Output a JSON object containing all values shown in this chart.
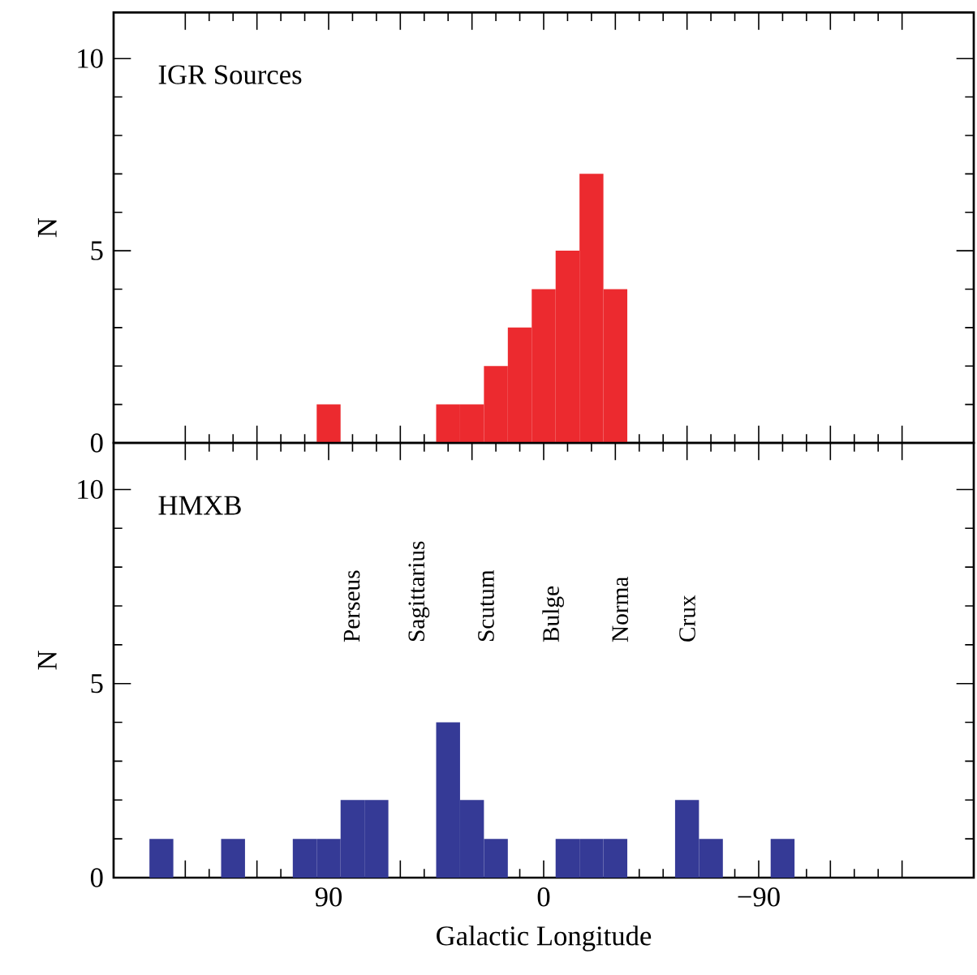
{
  "chart_data": [
    {
      "type": "histogram",
      "title": "IGR Sources",
      "ylabel": "N",
      "color": "#ec2a2f",
      "bins": [
        175,
        165,
        155,
        145,
        135,
        125,
        115,
        105,
        95,
        85,
        75,
        65,
        55,
        45,
        35,
        25,
        15,
        5,
        -5,
        -15,
        -25,
        -35,
        -45,
        -55,
        -65,
        -75,
        -85,
        -95,
        -105,
        -115,
        -125,
        -135,
        -145,
        -155,
        -165,
        -175
      ],
      "values": [
        0,
        0,
        0,
        0,
        0,
        0,
        0,
        0,
        1,
        0,
        0,
        0,
        0,
        1,
        1,
        2,
        3,
        4,
        5,
        7,
        4,
        0,
        0,
        0,
        0,
        0,
        0,
        0,
        0,
        0,
        0,
        0,
        0,
        0,
        0
      ],
      "xlim": [
        180,
        -180
      ],
      "ylim": [
        0,
        11.2
      ],
      "xticks": [
        {
          "value": 150,
          "label": null
        },
        {
          "value": 120,
          "label": null
        },
        {
          "value": 90,
          "label": null
        },
        {
          "value": 60,
          "label": null
        },
        {
          "value": 30,
          "label": null
        },
        {
          "value": 0,
          "label": null
        },
        {
          "value": -30,
          "label": null
        },
        {
          "value": -60,
          "label": null
        },
        {
          "value": -90,
          "label": null
        },
        {
          "value": -120,
          "label": null
        },
        {
          "value": -150,
          "label": null
        }
      ],
      "yticks": [
        0,
        5,
        10
      ],
      "tick_labels": "y"
    },
    {
      "type": "histogram",
      "title": "HMXB",
      "ylabel": "N",
      "xlabel": "Galactic Longitude",
      "color": "#353a96",
      "bins": [
        175,
        165,
        155,
        145,
        135,
        125,
        115,
        105,
        95,
        85,
        75,
        65,
        55,
        45,
        35,
        25,
        15,
        5,
        -5,
        -15,
        -25,
        -35,
        -45,
        -55,
        -65,
        -75,
        -85,
        -95,
        -105,
        -115,
        -125,
        -135,
        -145,
        -155,
        -165,
        -175
      ],
      "values": [
        0,
        1,
        0,
        0,
        1,
        0,
        0,
        1,
        1,
        2,
        2,
        0,
        0,
        4,
        2,
        1,
        0,
        0,
        1,
        1,
        1,
        0,
        0,
        2,
        1,
        0,
        0,
        1,
        0,
        0,
        0,
        0,
        0,
        0,
        0
      ],
      "xlim": [
        180,
        -180
      ],
      "ylim": [
        0,
        11.2
      ],
      "xticks": [
        {
          "value": 150,
          "label": null
        },
        {
          "value": 120,
          "label": null
        },
        90,
        {
          "value": 60,
          "label": null
        },
        {
          "value": 30,
          "label": null
        },
        0,
        {
          "value": -30,
          "label": null
        },
        {
          "value": -60,
          "label": null
        },
        {
          "value": -90,
          "label": "−90"
        },
        {
          "value": -120,
          "label": null
        },
        {
          "value": -150,
          "label": null
        }
      ],
      "yticks": [
        0,
        5,
        10
      ],
      "annotations": [
        "Perseus",
        "Sagittarius",
        "Scutum",
        "Bulge",
        "Norma",
        "Crux"
      ]
    }
  ]
}
